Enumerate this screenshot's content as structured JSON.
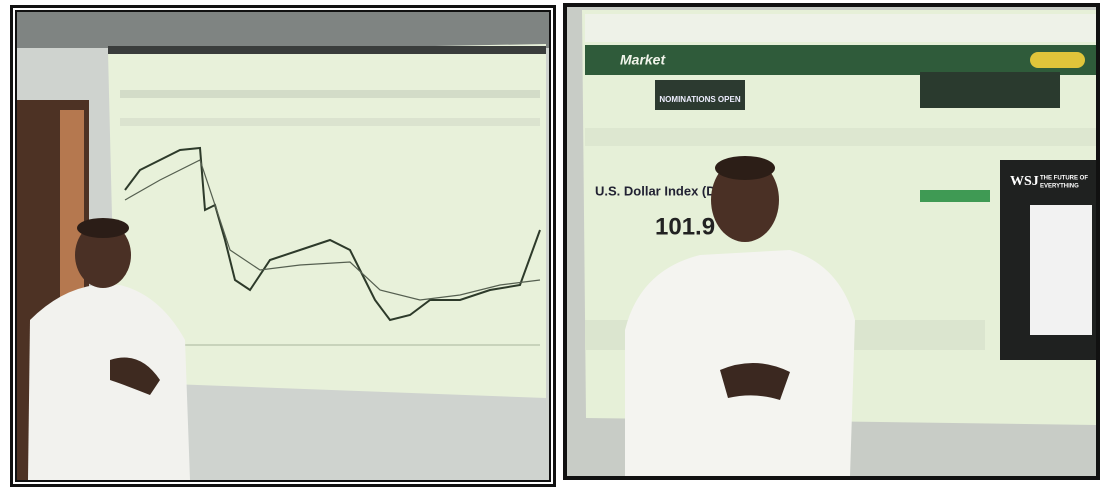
{
  "right_photo": {
    "site_logo": "Market",
    "banner": "NOMINATIONS OPEN",
    "page_title": "U.S. Dollar Index (DXY)",
    "price": "101.9",
    "ad_brand": "WSJ",
    "ad_tagline_1": "THE FUTURE OF",
    "ad_tagline_2": "EVERYTHING"
  }
}
